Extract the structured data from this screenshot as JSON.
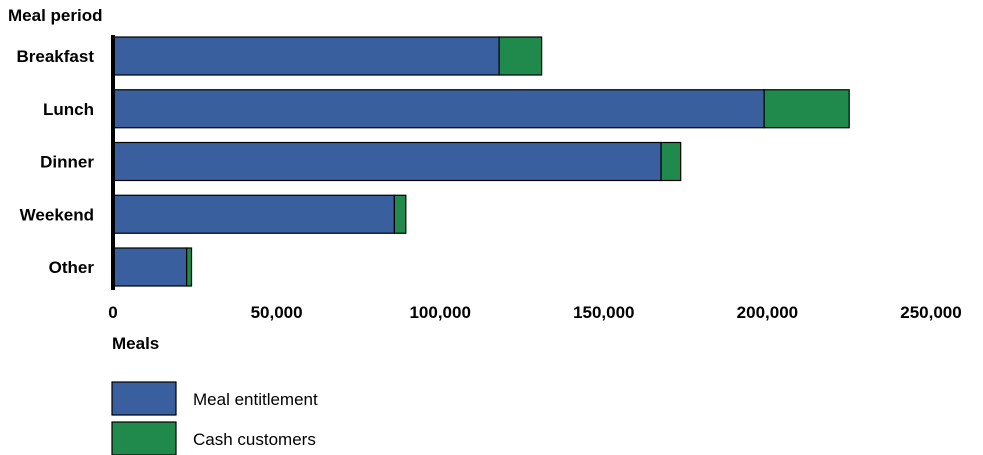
{
  "chart_data": {
    "type": "bar",
    "orientation": "horizontal",
    "stacked": true,
    "ylabel": "Meal period",
    "xlabel": "Meals",
    "categories": [
      "Breakfast",
      "Lunch",
      "Dinner",
      "Weekend",
      "Other"
    ],
    "series": [
      {
        "name": "Meal entitlement",
        "color": "#3a5f9e",
        "values": [
          118000,
          199000,
          167500,
          86000,
          22500
        ]
      },
      {
        "name": "Cash customers",
        "color": "#1f8a4c",
        "values": [
          13000,
          26000,
          6000,
          3500,
          1500
        ]
      }
    ],
    "xlim": [
      0,
      250000
    ],
    "xticks": [
      0,
      50000,
      100000,
      150000,
      200000,
      250000
    ],
    "xtick_labels": [
      "0",
      "50,000",
      "100,000",
      "150,000",
      "200,000",
      "250,000"
    ],
    "grid": false,
    "legend_position": "bottom-left"
  }
}
